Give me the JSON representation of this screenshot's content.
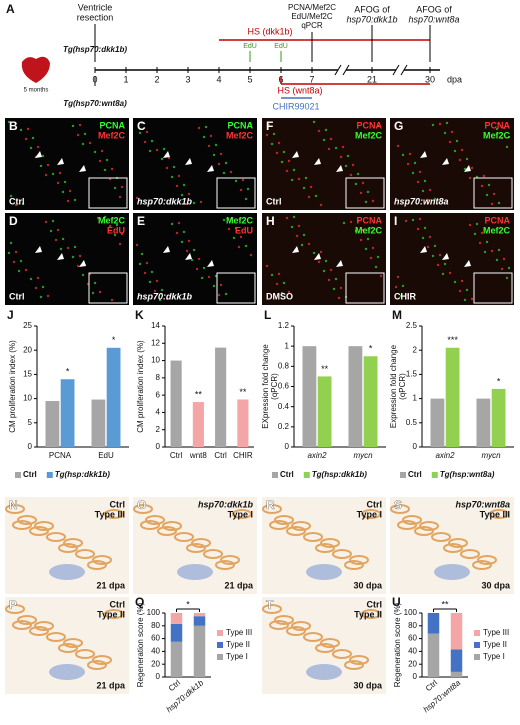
{
  "timeline": {
    "panel": "A",
    "resection": [
      "Ventricle",
      "resection"
    ],
    "line_top": "Tg(hsp70:dkk1b)",
    "line_bottom": "Tg(hsp70:wnt8a)",
    "age": "5 months",
    "ticks": [
      "0",
      "1",
      "2",
      "3",
      "4",
      "5",
      "6",
      "7",
      "21",
      "30"
    ],
    "unit": "dpa",
    "hs_dkk1b": "HS (dkk1b)",
    "edu": [
      "EdU",
      "EdU"
    ],
    "assay": [
      "PCNA/Mef2C",
      "EdU/Mef2C",
      "qPCR"
    ],
    "afog_dkk1b": [
      "AFOG of",
      "hsp70:dkk1b"
    ],
    "afog_wnt8a": [
      "AFOG of",
      "hsp70:wnt8a"
    ],
    "hs_wnt8a": "HS (wnt8a)",
    "chir": "CHIR99021"
  },
  "images": [
    {
      "panel": "B",
      "stain": [
        {
          "text": "PCNA",
          "color": "#33ff33"
        },
        {
          "text": "Mef2C",
          "color": "#ff3333"
        }
      ],
      "caption": "Ctrl"
    },
    {
      "panel": "C",
      "stain": [
        {
          "text": "PCNA",
          "color": "#33ff33"
        },
        {
          "text": "Mef2C",
          "color": "#ff3333"
        }
      ],
      "caption": "hsp70:dkk1b"
    },
    {
      "panel": "F",
      "stain": [
        {
          "text": "PCNA",
          "color": "#ff3333"
        },
        {
          "text": "Mef2C",
          "color": "#33ff33"
        }
      ],
      "caption": "Ctrl"
    },
    {
      "panel": "G",
      "stain": [
        {
          "text": "PCNA",
          "color": "#ff3333"
        },
        {
          "text": "Mef2C",
          "color": "#33ff33"
        }
      ],
      "caption": "hsp70:wnt8a"
    },
    {
      "panel": "D",
      "stain": [
        {
          "text": "Mef2C",
          "color": "#33ff33"
        },
        {
          "text": "EdU",
          "color": "#ff3333"
        }
      ],
      "caption": "Ctrl"
    },
    {
      "panel": "E",
      "stain": [
        {
          "text": "Mef2C",
          "color": "#33ff33"
        },
        {
          "text": "EdU",
          "color": "#ff3333"
        }
      ],
      "caption": "hsp70:dkk1b"
    },
    {
      "panel": "H",
      "stain": [
        {
          "text": "PCNA",
          "color": "#ff3333"
        },
        {
          "text": "Mef2C",
          "color": "#33ff33"
        }
      ],
      "caption": "DMSO"
    },
    {
      "panel": "I",
      "stain": [
        {
          "text": "PCNA",
          "color": "#ff3333"
        },
        {
          "text": "Mef2C",
          "color": "#33ff33"
        }
      ],
      "caption": "CHIR"
    }
  ],
  "histology": [
    {
      "panel": "N",
      "label": [
        "Ctrl",
        "Type III"
      ],
      "caption": "21 dpa"
    },
    {
      "panel": "O",
      "label": [
        "hsp70:dkk1b",
        "Type I"
      ],
      "caption": "21 dpa"
    },
    {
      "panel": "R",
      "label": [
        "Ctrl",
        "Type I"
      ],
      "caption": "30 dpa"
    },
    {
      "panel": "S",
      "label": [
        "hsp70:wnt8a",
        "Type III"
      ],
      "caption": "30 dpa"
    },
    {
      "panel": "P",
      "label": [
        "Ctrl",
        "Type II"
      ],
      "caption": "21 dpa"
    },
    {
      "panel": "T",
      "label": [
        "Ctrl",
        "Type II"
      ],
      "caption": "30 dpa"
    }
  ],
  "chart_data": [
    {
      "type": "bar",
      "panel": "J",
      "ylabel": [
        "CM proliferation index (%)"
      ],
      "categories": [
        "PCNA",
        "EdU"
      ],
      "series": [
        {
          "name": "Ctrl",
          "color": "#a6a6a6",
          "values": [
            9.5,
            9.8
          ]
        },
        {
          "name": "Tg(hsp:dkk1b)",
          "color": "#5b9bd5",
          "values": [
            14,
            20.5
          ],
          "stars": [
            "*",
            "*"
          ]
        }
      ],
      "ylim": [
        0,
        25
      ],
      "yticks": [
        0,
        5,
        10,
        15,
        20,
        25
      ]
    },
    {
      "type": "bar",
      "panel": "K",
      "ylabel": [
        "CM proliferation index (%)"
      ],
      "categories": [
        "Ctrl",
        "wnt8",
        "Ctrl",
        "CHIR"
      ],
      "series": [
        {
          "colors": [
            "#a6a6a6",
            "#f4a6a6",
            "#a6a6a6",
            "#f4a6a6"
          ],
          "values": [
            10,
            5.2,
            11.5,
            5.5
          ],
          "stars": [
            null,
            "**",
            null,
            "**"
          ]
        }
      ],
      "ylim": [
        0,
        14
      ],
      "yticks": [
        0,
        2,
        4,
        6,
        8,
        10,
        12,
        14
      ]
    },
    {
      "type": "bar",
      "panel": "L",
      "ylabel": [
        "EXpression fold change",
        "(qPCR)"
      ],
      "categories": [
        "axin2",
        "mycn"
      ],
      "italic_categories": true,
      "series": [
        {
          "name": "Ctrl",
          "color": "#a6a6a6",
          "values": [
            1,
            1
          ]
        },
        {
          "name": "Tg(hsp:dkk1b)",
          "color": "#92d050",
          "values": [
            0.7,
            0.9
          ],
          "stars": [
            "**",
            "*"
          ]
        }
      ],
      "ylim": [
        0,
        1.2
      ],
      "yticks": [
        0,
        0.2,
        0.4,
        0.6,
        0.8,
        1,
        1.2
      ]
    },
    {
      "type": "bar",
      "panel": "M",
      "ylabel": [
        "Expression fold change",
        "(qPCR)"
      ],
      "categories": [
        "axin2",
        "mycn"
      ],
      "italic_categories": true,
      "series": [
        {
          "name": "Ctrl",
          "color": "#a6a6a6",
          "values": [
            1,
            1
          ]
        },
        {
          "name": "Tg(hsp:wnt8a)",
          "color": "#92d050",
          "values": [
            2.05,
            1.2
          ],
          "stars": [
            "***",
            "*"
          ]
        }
      ],
      "ylim": [
        0,
        2.5
      ],
      "yticks": [
        0,
        0.5,
        1,
        1.5,
        2,
        2.5
      ]
    },
    {
      "type": "stacked_bar",
      "panel": "Q",
      "ylabel": [
        "Regeneration score (%)"
      ],
      "categories": [
        "Ctrl",
        "hsp70:dkk1b"
      ],
      "significance": "*",
      "series": [
        {
          "name": "Type I",
          "color": "#a6a6a6",
          "values": [
            55,
            80
          ]
        },
        {
          "name": "Type II",
          "color": "#4472c4",
          "values": [
            28,
            15
          ]
        },
        {
          "name": "Type III",
          "color": "#f4a6a6",
          "values": [
            17,
            5
          ]
        }
      ],
      "ylim": [
        0,
        100
      ],
      "yticks": [
        0,
        20,
        40,
        60,
        80,
        100
      ]
    },
    {
      "type": "stacked_bar",
      "panel": "U",
      "ylabel": [
        "Regeneration score (%)"
      ],
      "categories": [
        "Ctrl",
        "hsp70:wnt8a"
      ],
      "significance": "**",
      "series": [
        {
          "name": "Type I",
          "color": "#a6a6a6",
          "values": [
            68,
            8
          ]
        },
        {
          "name": "Type II",
          "color": "#4472c4",
          "values": [
            32,
            35
          ]
        },
        {
          "name": "Type III",
          "color": "#f4a6a6",
          "values": [
            0,
            57
          ]
        }
      ],
      "ylim": [
        0,
        100
      ],
      "yticks": [
        0,
        20,
        40,
        60,
        80,
        100
      ]
    }
  ]
}
